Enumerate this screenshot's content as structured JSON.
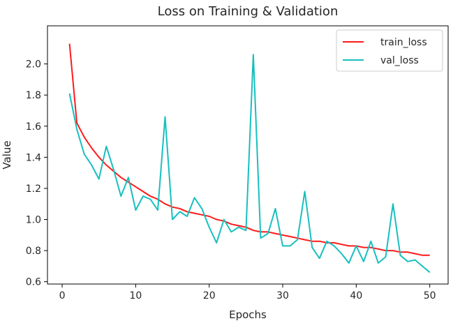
{
  "chart_data": {
    "type": "line",
    "title": "Loss on Training & Validation",
    "xlabel": "Epochs",
    "ylabel": "Value",
    "xlim": [
      -2,
      52.5
    ],
    "ylim": [
      0.585,
      2.245
    ],
    "x_ticks": [
      0,
      10,
      20,
      30,
      40,
      50
    ],
    "x_tick_labels": [
      "0",
      "10",
      "20",
      "30",
      "40",
      "50"
    ],
    "y_ticks": [
      0.6,
      0.8,
      1.0,
      1.2,
      1.4,
      1.6,
      1.8,
      2.0
    ],
    "y_tick_labels": [
      "0.6",
      "0.8",
      "1.0",
      "1.2",
      "1.4",
      "1.6",
      "1.8",
      "2.0"
    ],
    "legend_position": "top-right",
    "x": [
      1,
      2,
      3,
      4,
      5,
      6,
      7,
      8,
      9,
      10,
      11,
      12,
      13,
      14,
      15,
      16,
      17,
      18,
      19,
      20,
      21,
      22,
      23,
      24,
      25,
      26,
      27,
      28,
      29,
      30,
      31,
      32,
      33,
      34,
      35,
      36,
      37,
      38,
      39,
      40,
      41,
      42,
      43,
      44,
      45,
      46,
      47,
      48,
      49,
      50
    ],
    "series": [
      {
        "name": "train_loss",
        "color": "#ff1a1a",
        "values": [
          2.13,
          1.62,
          1.53,
          1.46,
          1.4,
          1.35,
          1.31,
          1.27,
          1.24,
          1.21,
          1.18,
          1.15,
          1.13,
          1.1,
          1.08,
          1.07,
          1.05,
          1.04,
          1.03,
          1.02,
          1.0,
          0.99,
          0.97,
          0.96,
          0.95,
          0.93,
          0.92,
          0.92,
          0.91,
          0.9,
          0.89,
          0.88,
          0.87,
          0.86,
          0.86,
          0.85,
          0.85,
          0.84,
          0.83,
          0.83,
          0.82,
          0.82,
          0.81,
          0.8,
          0.8,
          0.79,
          0.79,
          0.78,
          0.77,
          0.77
        ]
      },
      {
        "name": "val_loss",
        "color": "#17bfbf",
        "values": [
          1.81,
          1.58,
          1.42,
          1.35,
          1.26,
          1.47,
          1.32,
          1.15,
          1.27,
          1.06,
          1.15,
          1.13,
          1.06,
          1.66,
          1.0,
          1.05,
          1.02,
          1.14,
          1.07,
          0.95,
          0.85,
          1.0,
          0.92,
          0.95,
          0.93,
          2.06,
          0.88,
          0.91,
          1.07,
          0.83,
          0.83,
          0.87,
          1.18,
          0.82,
          0.75,
          0.86,
          0.83,
          0.78,
          0.72,
          0.83,
          0.73,
          0.86,
          0.72,
          0.76,
          1.1,
          0.77,
          0.73,
          0.74,
          0.7,
          0.66
        ]
      }
    ]
  }
}
